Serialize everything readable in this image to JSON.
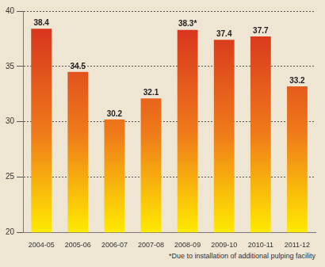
{
  "chart_data": {
    "type": "bar",
    "categories": [
      "2004-05",
      "2005-06",
      "2006-07",
      "2007-08",
      "2008-09",
      "2009-10",
      "2010-11",
      "2011-12"
    ],
    "values": [
      38.4,
      34.5,
      30.2,
      32.1,
      38.3,
      37.4,
      37.7,
      33.2
    ],
    "value_labels": [
      "38.4",
      "34.5",
      "30.2",
      "32.1",
      "38.3*",
      "37.4",
      "37.7",
      "33.2"
    ],
    "data_labels": true,
    "color": "#d42a1e",
    "ylim": [
      20,
      40
    ],
    "yticks": [
      20,
      25,
      30,
      35,
      40
    ],
    "grid": true,
    "annotations": [
      "*Due to installation of additional pulping facility"
    ]
  }
}
